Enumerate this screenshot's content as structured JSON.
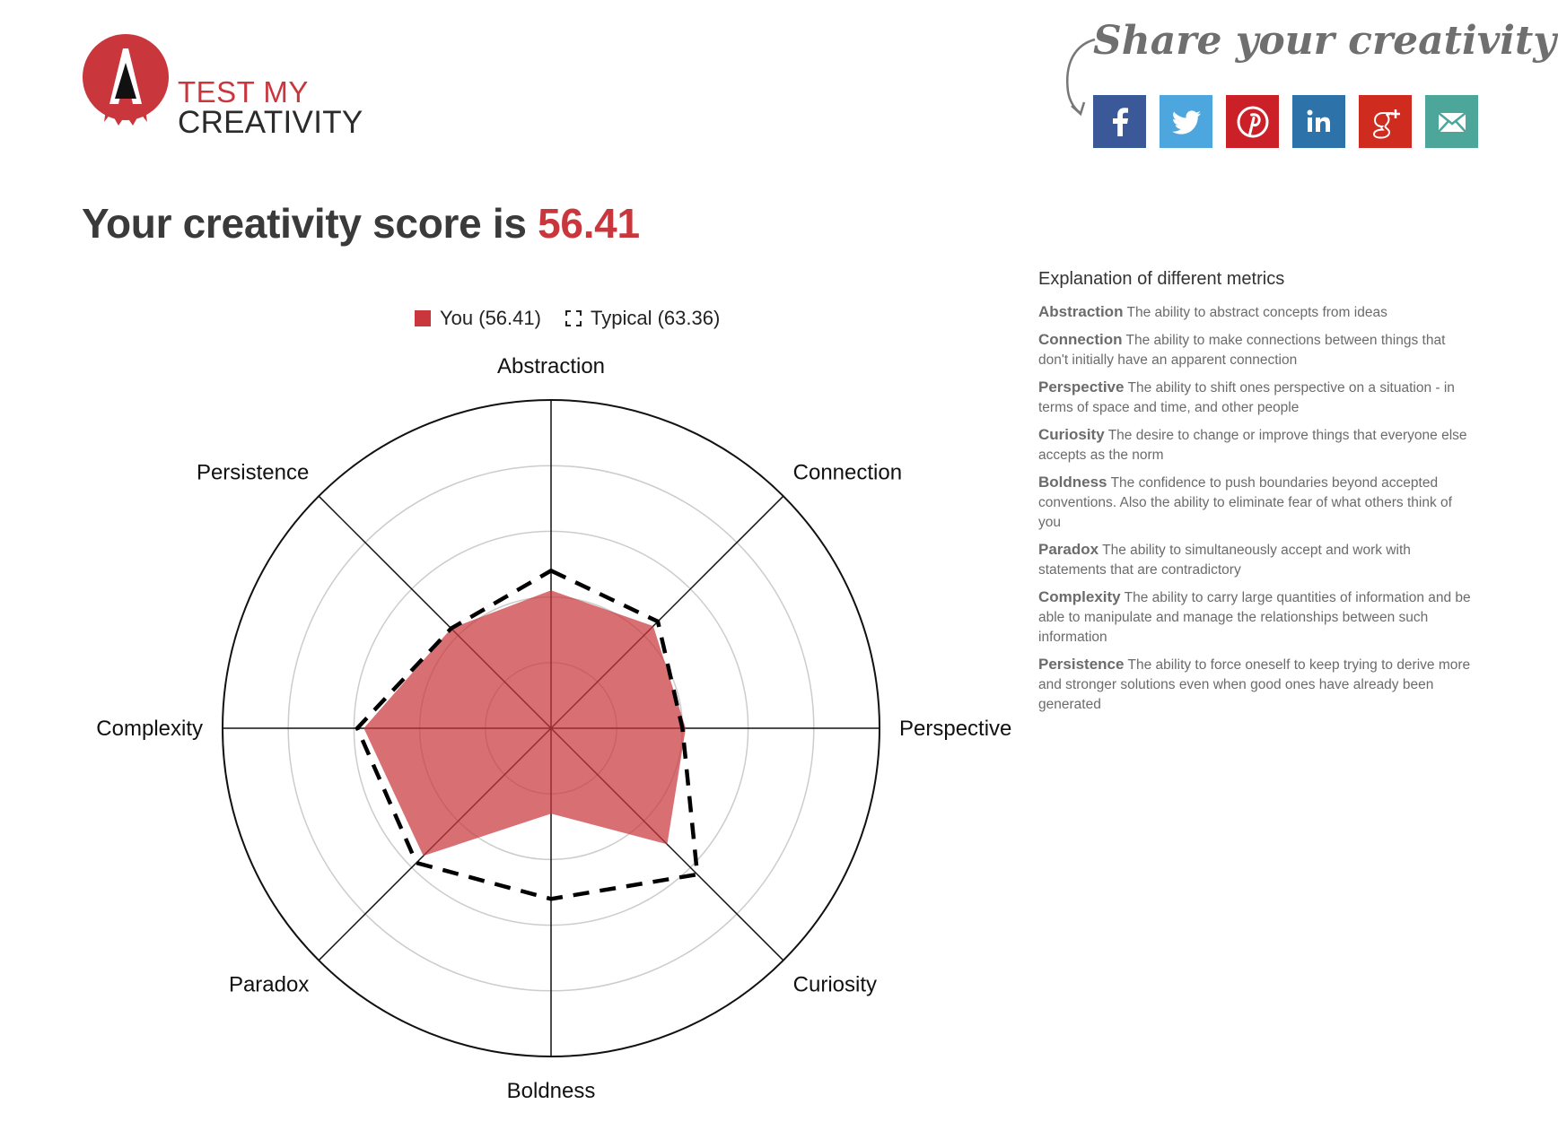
{
  "brand": {
    "logo_line1": "TEST MY",
    "logo_line2": "CREATIVITY",
    "accent_color": "#c9373d"
  },
  "share": {
    "heading": "Share your creativity",
    "buttons": [
      {
        "name": "facebook",
        "icon": "facebook-icon",
        "color": "#3b5998"
      },
      {
        "name": "twitter",
        "icon": "twitter-icon",
        "color": "#4da7de"
      },
      {
        "name": "pinterest",
        "icon": "pinterest-icon",
        "color": "#cb2027"
      },
      {
        "name": "linkedin",
        "icon": "linkedin-icon",
        "color": "#2d72a8"
      },
      {
        "name": "google-plus",
        "icon": "google-plus-icon",
        "color": "#d02b1f"
      },
      {
        "name": "email",
        "icon": "mail-icon",
        "color": "#4da69a"
      }
    ]
  },
  "score": {
    "prefix": "Your creativity score is",
    "value": "56.41"
  },
  "legend": {
    "you": "You (56.41)",
    "typical": "Typical (63.36)"
  },
  "chart_data": {
    "type": "radar",
    "axes": [
      "Abstraction",
      "Connection",
      "Perspective",
      "Curiosity",
      "Boldness",
      "Paradox",
      "Complexity",
      "Persistence"
    ],
    "rmax": 100,
    "rings": [
      20,
      40,
      60,
      80,
      100
    ],
    "series": [
      {
        "name": "You (56.41)",
        "values": [
          42,
          44,
          41,
          50,
          26,
          55,
          57,
          43
        ],
        "color": "#c9373d",
        "style": "filled"
      },
      {
        "name": "Typical (63.36)",
        "values": [
          48,
          46,
          40,
          63,
          52,
          58,
          59,
          43
        ],
        "color": "#000000",
        "style": "dashed"
      }
    ],
    "grid": true,
    "legend_position": "top"
  },
  "explanation": {
    "title": "Explanation of different metrics",
    "metrics": [
      {
        "name": "Abstraction",
        "text": "The ability to abstract concepts from ideas"
      },
      {
        "name": "Connection",
        "text": "The ability to make connections between things that don't initially have an apparent connection"
      },
      {
        "name": "Perspective",
        "text": "The ability to shift ones perspective on a situation - in terms of space and time, and other people"
      },
      {
        "name": "Curiosity",
        "text": "The desire to change or improve things that everyone else accepts as the norm"
      },
      {
        "name": "Boldness",
        "text": "The confidence to push boundaries beyond accepted conventions. Also the ability to eliminate fear of what others think of you"
      },
      {
        "name": "Paradox",
        "text": "The ability to simultaneously accept and work with statements that are contradictory"
      },
      {
        "name": "Complexity",
        "text": "The ability to carry large quantities of information and be able to manipulate and manage the relationships between such information"
      },
      {
        "name": "Persistence",
        "text": "The ability to force oneself to keep trying to derive more and stronger solutions even when good ones have already been generated"
      }
    ]
  }
}
